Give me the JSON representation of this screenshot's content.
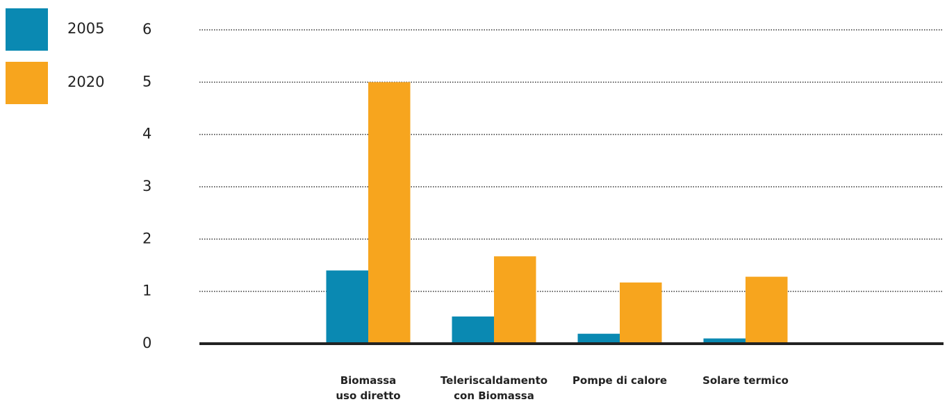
{
  "chart_data": {
    "type": "bar",
    "categories": [
      "Biomassa\nuso diretto",
      "Teleriscaldamento\ncon Biomassa",
      "Pompe di calore",
      "Solare termico"
    ],
    "series": [
      {
        "name": "2005",
        "color": "#0a89b2",
        "values": [
          1.4,
          0.52,
          0.19,
          0.1
        ]
      },
      {
        "name": "2020",
        "color": "#f7a51e",
        "values": [
          5.0,
          1.67,
          1.17,
          1.28
        ]
      }
    ],
    "ylim": [
      0,
      6
    ],
    "yticks": [
      0,
      1,
      2,
      3,
      4,
      5,
      6
    ],
    "grid": true,
    "legend": "top-left"
  }
}
